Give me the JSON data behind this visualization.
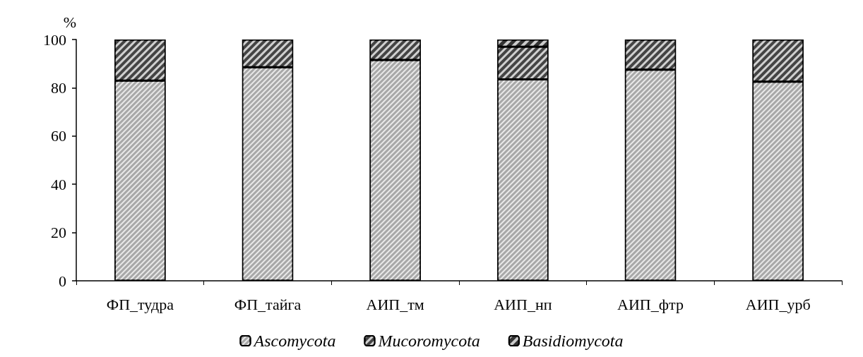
{
  "chart_data": {
    "type": "bar",
    "stacked": true,
    "ylabel": "%",
    "categories": [
      "ФП_тудра",
      "ФП_тайга",
      "АИП_тм",
      "АИП_нп",
      "АИП_фтр",
      "АИП_урб"
    ],
    "series": [
      {
        "name": "Ascomycota",
        "color": "#a8a8a8",
        "values": [
          83,
          88.5,
          91.5,
          83.5,
          87.5,
          82.5
        ]
      },
      {
        "name": "Mucoromycota",
        "color": "#444444",
        "values": [
          17,
          11.5,
          8.5,
          13.5,
          12.5,
          17.5
        ]
      },
      {
        "name": "Basidiomycota",
        "color": "#333333",
        "values": [
          null,
          null,
          null,
          3,
          null,
          null
        ]
      }
    ],
    "ylim": [
      0,
      100
    ],
    "yticks": [
      0,
      20,
      40,
      60,
      80,
      100
    ],
    "grid": false,
    "legend": "bottom"
  }
}
